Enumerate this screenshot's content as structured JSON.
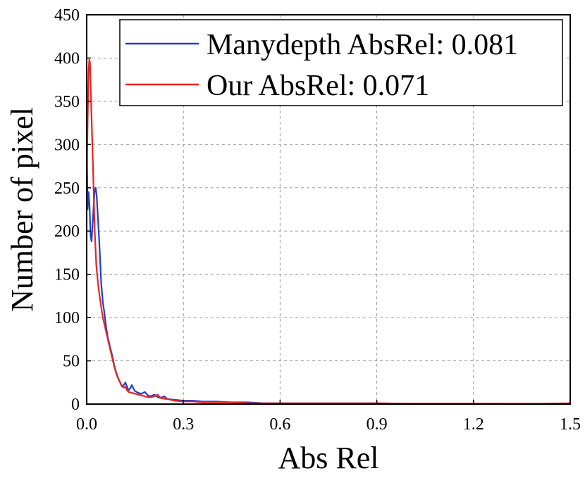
{
  "chart_data": {
    "type": "line",
    "xlabel": "Abs Rel",
    "ylabel": "Number of pixel",
    "xlim": [
      0.0,
      1.5
    ],
    "ylim": [
      0,
      450
    ],
    "grid": true,
    "legend_position": "top-right",
    "x_ticks": [
      "0.0",
      "0.3",
      "0.6",
      "0.9",
      "1.2",
      "1.5"
    ],
    "x_tick_values": [
      0.0,
      0.3,
      0.6,
      0.9,
      1.2,
      1.5
    ],
    "y_ticks": [
      "0",
      "50",
      "100",
      "150",
      "200",
      "250",
      "300",
      "350",
      "400",
      "450"
    ],
    "y_tick_values": [
      0,
      50,
      100,
      150,
      200,
      250,
      300,
      350,
      400,
      450
    ],
    "series": [
      {
        "name": "Manydepth AbsRel: 0.081",
        "color": "#1f3fcf",
        "points": [
          [
            0.0,
            315
          ],
          [
            0.003,
            225
          ],
          [
            0.006,
            245
          ],
          [
            0.009,
            228
          ],
          [
            0.012,
            195
          ],
          [
            0.015,
            188
          ],
          [
            0.018,
            205
          ],
          [
            0.021,
            225
          ],
          [
            0.025,
            248
          ],
          [
            0.028,
            250
          ],
          [
            0.031,
            240
          ],
          [
            0.035,
            215
          ],
          [
            0.04,
            180
          ],
          [
            0.045,
            140
          ],
          [
            0.05,
            118
          ],
          [
            0.055,
            105
          ],
          [
            0.06,
            90
          ],
          [
            0.065,
            78
          ],
          [
            0.07,
            70
          ],
          [
            0.075,
            62
          ],
          [
            0.08,
            55
          ],
          [
            0.085,
            45
          ],
          [
            0.09,
            38
          ],
          [
            0.095,
            33
          ],
          [
            0.1,
            28
          ],
          [
            0.105,
            24
          ],
          [
            0.11,
            20
          ],
          [
            0.115,
            22
          ],
          [
            0.12,
            25
          ],
          [
            0.125,
            20
          ],
          [
            0.13,
            16
          ],
          [
            0.135,
            18
          ],
          [
            0.14,
            22
          ],
          [
            0.145,
            18
          ],
          [
            0.15,
            15
          ],
          [
            0.16,
            13
          ],
          [
            0.17,
            12
          ],
          [
            0.18,
            14
          ],
          [
            0.19,
            10
          ],
          [
            0.2,
            9
          ],
          [
            0.21,
            11
          ],
          [
            0.22,
            8
          ],
          [
            0.23,
            7
          ],
          [
            0.24,
            9
          ],
          [
            0.25,
            6
          ],
          [
            0.27,
            5
          ],
          [
            0.3,
            4
          ],
          [
            0.33,
            4
          ],
          [
            0.36,
            3
          ],
          [
            0.4,
            3
          ],
          [
            0.45,
            2
          ],
          [
            0.5,
            2
          ],
          [
            0.55,
            1
          ],
          [
            0.6,
            1
          ],
          [
            0.7,
            1
          ],
          [
            0.8,
            1
          ],
          [
            0.9,
            1
          ],
          [
            1.0,
            0.5
          ],
          [
            1.2,
            0.5
          ],
          [
            1.4,
            0.3
          ],
          [
            1.5,
            0.3
          ]
        ]
      },
      {
        "name": "Our AbsRel: 0.071",
        "color": "#e8231f",
        "points": [
          [
            0.0,
            250
          ],
          [
            0.003,
            330
          ],
          [
            0.006,
            385
          ],
          [
            0.008,
            398
          ],
          [
            0.01,
            395
          ],
          [
            0.013,
            360
          ],
          [
            0.016,
            320
          ],
          [
            0.02,
            270
          ],
          [
            0.025,
            200
          ],
          [
            0.03,
            160
          ],
          [
            0.035,
            140
          ],
          [
            0.04,
            125
          ],
          [
            0.045,
            112
          ],
          [
            0.05,
            100
          ],
          [
            0.055,
            92
          ],
          [
            0.06,
            84
          ],
          [
            0.065,
            76
          ],
          [
            0.07,
            68
          ],
          [
            0.075,
            60
          ],
          [
            0.08,
            52
          ],
          [
            0.085,
            44
          ],
          [
            0.09,
            37
          ],
          [
            0.095,
            32
          ],
          [
            0.1,
            28
          ],
          [
            0.105,
            24
          ],
          [
            0.11,
            21
          ],
          [
            0.115,
            19
          ],
          [
            0.12,
            20
          ],
          [
            0.125,
            16
          ],
          [
            0.13,
            14
          ],
          [
            0.14,
            13
          ],
          [
            0.15,
            12
          ],
          [
            0.16,
            11
          ],
          [
            0.17,
            10
          ],
          [
            0.18,
            9
          ],
          [
            0.19,
            8
          ],
          [
            0.2,
            8
          ],
          [
            0.21,
            9
          ],
          [
            0.22,
            11
          ],
          [
            0.23,
            7
          ],
          [
            0.24,
            6
          ],
          [
            0.25,
            6
          ],
          [
            0.27,
            4
          ],
          [
            0.3,
            3
          ],
          [
            0.33,
            3
          ],
          [
            0.36,
            2
          ],
          [
            0.4,
            2
          ],
          [
            0.45,
            2
          ],
          [
            0.5,
            1
          ],
          [
            0.6,
            1
          ],
          [
            0.7,
            1
          ],
          [
            0.8,
            1
          ],
          [
            0.9,
            1
          ],
          [
            1.0,
            0.5
          ],
          [
            1.2,
            0.5
          ],
          [
            1.4,
            0.5
          ],
          [
            1.5,
            1
          ]
        ]
      }
    ]
  }
}
